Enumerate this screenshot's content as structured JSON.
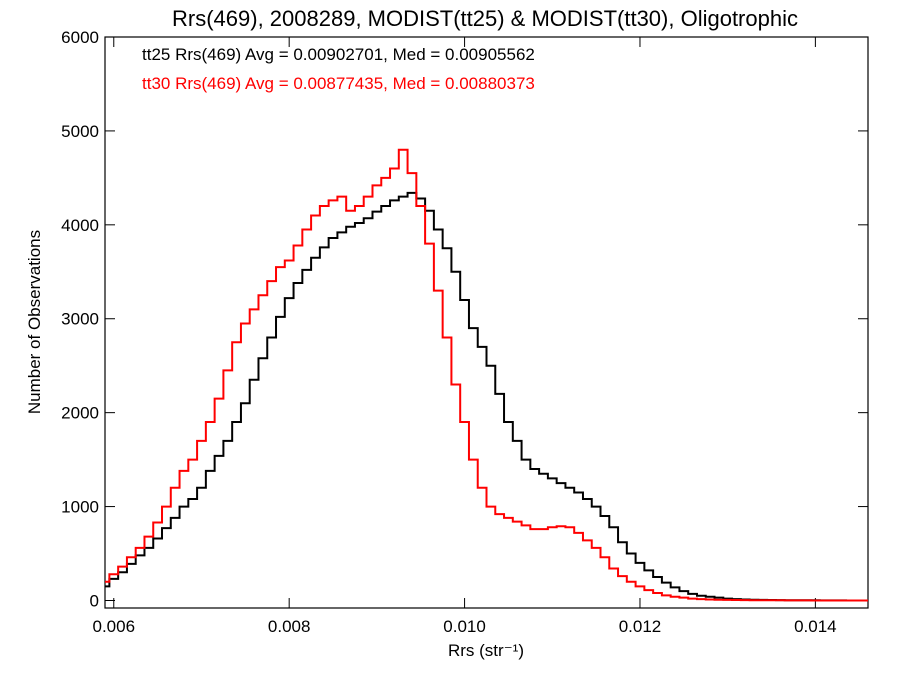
{
  "chart_data": {
    "type": "line",
    "title": "Rrs(469), 2008289, MODIST(tt25) & MODIST(tt30), Oligotrophic",
    "xlabel": "Rrs (str⁻¹)",
    "ylabel": "Number of Observations",
    "xlim": [
      0.0059,
      0.0146
    ],
    "ylim": [
      -80,
      6000
    ],
    "x_ticks": [
      0.006,
      0.008,
      0.01,
      0.012,
      0.014
    ],
    "x_tick_labels": [
      "0.006",
      "0.008",
      "0.010",
      "0.012",
      "0.014"
    ],
    "y_ticks": [
      0,
      1000,
      2000,
      3000,
      4000,
      5000,
      6000
    ],
    "y_tick_labels": [
      "0",
      "1000",
      "2000",
      "3000",
      "4000",
      "5000",
      "6000"
    ],
    "grid": false,
    "step": true,
    "series": [
      {
        "name": "tt25",
        "color": "#000000",
        "annotation": "tt25 Rrs(469) Avg = 0.00902701, Med = 0.00905562",
        "x": [
          0.0059,
          0.006,
          0.0061,
          0.0062,
          0.0063,
          0.0064,
          0.0065,
          0.0066,
          0.0067,
          0.0068,
          0.0069,
          0.007,
          0.0071,
          0.0072,
          0.0073,
          0.0074,
          0.0075,
          0.0076,
          0.0077,
          0.0078,
          0.0079,
          0.008,
          0.0081,
          0.0082,
          0.0083,
          0.0084,
          0.0085,
          0.0086,
          0.0087,
          0.0088,
          0.0089,
          0.009,
          0.0091,
          0.0092,
          0.0093,
          0.0094,
          0.0095,
          0.0096,
          0.0097,
          0.0098,
          0.0099,
          0.01,
          0.0101,
          0.0102,
          0.0103,
          0.0104,
          0.0105,
          0.0106,
          0.0107,
          0.0108,
          0.0109,
          0.011,
          0.0111,
          0.0112,
          0.0113,
          0.0114,
          0.0115,
          0.0116,
          0.0117,
          0.0118,
          0.0119,
          0.012,
          0.0121,
          0.0122,
          0.0123,
          0.0124,
          0.0125,
          0.0126,
          0.0127,
          0.0128,
          0.0129,
          0.013,
          0.0131,
          0.0132,
          0.0133,
          0.0134,
          0.0135,
          0.0136,
          0.0137,
          0.0138,
          0.0139,
          0.014,
          0.0141,
          0.0142,
          0.0143,
          0.0144,
          0.0145,
          0.0146
        ],
        "y": [
          150,
          230,
          300,
          390,
          480,
          560,
          660,
          770,
          880,
          1000,
          1080,
          1200,
          1380,
          1540,
          1700,
          1900,
          2100,
          2350,
          2580,
          2800,
          3020,
          3220,
          3380,
          3520,
          3650,
          3760,
          3860,
          3920,
          3980,
          4020,
          4070,
          4140,
          4200,
          4260,
          4300,
          4340,
          4280,
          4150,
          3950,
          3750,
          3500,
          3200,
          2900,
          2700,
          2500,
          2200,
          1900,
          1700,
          1500,
          1400,
          1350,
          1300,
          1250,
          1200,
          1150,
          1080,
          1000,
          900,
          780,
          620,
          500,
          400,
          320,
          250,
          190,
          140,
          100,
          70,
          50,
          40,
          30,
          20,
          15,
          10,
          8,
          6,
          5,
          4,
          3,
          2,
          2,
          2,
          1,
          1,
          1,
          0,
          0,
          0
        ]
      },
      {
        "name": "tt30",
        "color": "#ff0000",
        "annotation": "tt30 Rrs(469) Avg = 0.00877435, Med = 0.00880373",
        "x": [
          0.0059,
          0.006,
          0.0061,
          0.0062,
          0.0063,
          0.0064,
          0.0065,
          0.0066,
          0.0067,
          0.0068,
          0.0069,
          0.007,
          0.0071,
          0.0072,
          0.0073,
          0.0074,
          0.0075,
          0.0076,
          0.0077,
          0.0078,
          0.0079,
          0.008,
          0.0081,
          0.0082,
          0.0083,
          0.0084,
          0.0085,
          0.0086,
          0.0087,
          0.0088,
          0.0089,
          0.009,
          0.0091,
          0.0092,
          0.0093,
          0.0094,
          0.0095,
          0.0096,
          0.0097,
          0.0098,
          0.0099,
          0.01,
          0.0101,
          0.0102,
          0.0103,
          0.0104,
          0.0105,
          0.0106,
          0.0107,
          0.0108,
          0.0109,
          0.011,
          0.0111,
          0.0112,
          0.0113,
          0.0114,
          0.0115,
          0.0116,
          0.0117,
          0.0118,
          0.0119,
          0.012,
          0.0121,
          0.0122,
          0.0123,
          0.0124,
          0.0125,
          0.0126,
          0.0127,
          0.0128,
          0.0129,
          0.013,
          0.0131,
          0.0132,
          0.0133,
          0.0134,
          0.0135,
          0.0136,
          0.0137,
          0.0138,
          0.0139,
          0.014,
          0.0141,
          0.0142,
          0.0143,
          0.0144,
          0.0145,
          0.0146
        ],
        "y": [
          200,
          280,
          360,
          460,
          560,
          680,
          830,
          1000,
          1200,
          1380,
          1500,
          1700,
          1900,
          2150,
          2450,
          2750,
          2950,
          3100,
          3250,
          3400,
          3550,
          3620,
          3780,
          3950,
          4100,
          4200,
          4260,
          4300,
          4150,
          4200,
          4300,
          4420,
          4500,
          4600,
          4800,
          4550,
          4200,
          3800,
          3300,
          2800,
          2300,
          1900,
          1500,
          1200,
          1000,
          920,
          880,
          840,
          800,
          760,
          760,
          780,
          790,
          780,
          720,
          640,
          560,
          460,
          340,
          260,
          200,
          150,
          110,
          80,
          55,
          40,
          30,
          20,
          15,
          10,
          8,
          6,
          5,
          4,
          3,
          3,
          2,
          2,
          1,
          1,
          1,
          0,
          0,
          0,
          0,
          0,
          0,
          0
        ]
      }
    ]
  }
}
